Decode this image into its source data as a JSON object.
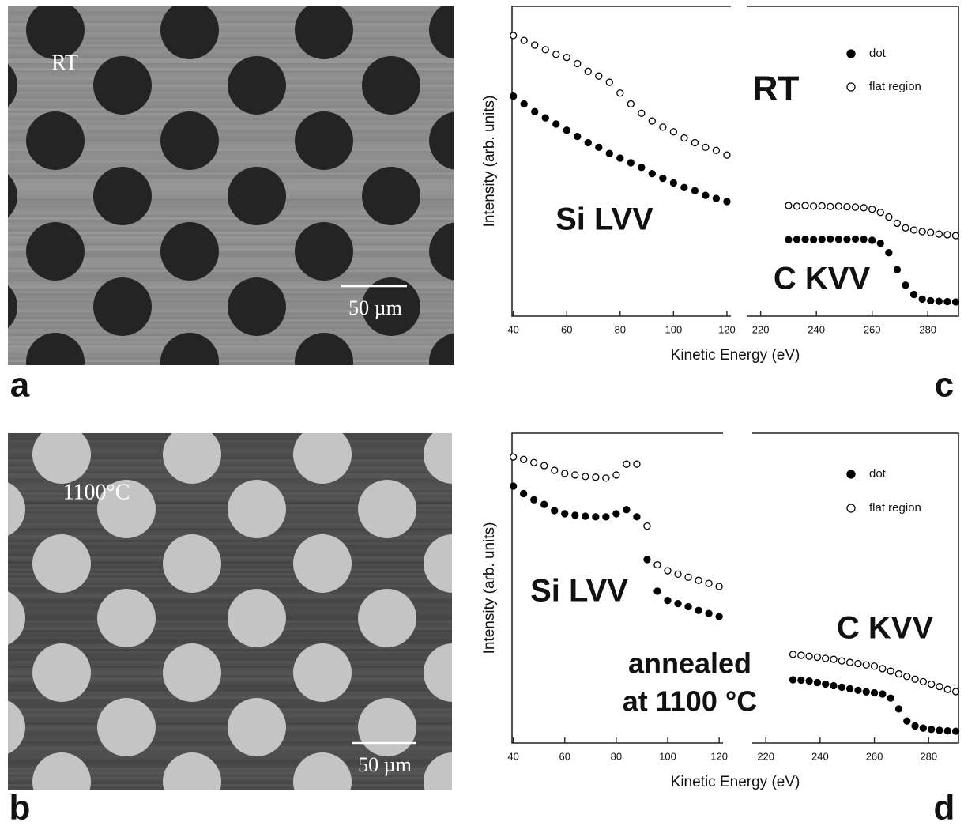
{
  "images": [
    {
      "panel": "a",
      "label": "RT",
      "scale_bar": "50 µm"
    },
    {
      "panel": "b",
      "label": "1100°C",
      "scale_bar": "50 µm"
    }
  ],
  "chart_data": [
    {
      "type": "scatter",
      "panel": "c",
      "x_label": "Kinetic Energy (eV)",
      "y_label": "Intensity (arb. units)",
      "annotations": [
        "Si LVV",
        "C KVV",
        "RT"
      ],
      "xlim": [
        39.5,
        121.5
      ],
      "xticks": [
        40,
        60,
        80,
        100,
        120
      ],
      "x2lim": [
        215,
        291
      ],
      "x2ticks": [
        220,
        240,
        260,
        280
      ],
      "ylim": [
        0,
        100
      ],
      "x": [
        40,
        44,
        48,
        52,
        56,
        60,
        64,
        68,
        72,
        76,
        80,
        84,
        88,
        92,
        96,
        100,
        104,
        108,
        112,
        116,
        120,
        230,
        233,
        236,
        239,
        242,
        245,
        248,
        251,
        254,
        257,
        260,
        263,
        266,
        269,
        272,
        275,
        278,
        281,
        284,
        287,
        290
      ],
      "series": [
        {
          "name": "dot",
          "color": "#000000",
          "filled": true,
          "values": [
            71,
            68.5,
            66,
            64,
            62,
            60,
            58,
            56,
            54.5,
            52.5,
            51,
            49.5,
            48,
            46,
            44.5,
            43,
            41.5,
            40.5,
            39,
            38,
            37,
            24.7,
            24.8,
            24.8,
            24.7,
            24.8,
            24.9,
            24.8,
            24.8,
            24.9,
            24.8,
            24.5,
            23.5,
            20.5,
            15,
            10,
            7,
            5.5,
            5,
            4.8,
            4.7,
            4.6
          ]
        },
        {
          "name": "flat region",
          "color": "#000000",
          "filled": false,
          "values": [
            90.6,
            89,
            87.5,
            86,
            84.5,
            83.5,
            81.5,
            79,
            77.5,
            75.5,
            72,
            68.5,
            65.5,
            63,
            61,
            59.5,
            57.5,
            56,
            54.5,
            53.5,
            52,
            35.7,
            35.5,
            35.7,
            35.5,
            35.6,
            35.4,
            35.5,
            35.3,
            35.2,
            35,
            34.5,
            33.5,
            32,
            30,
            28.5,
            27.8,
            27.3,
            27,
            26.5,
            26.3,
            26
          ]
        }
      ]
    },
    {
      "type": "scatter",
      "panel": "d",
      "x_label": "Kinetic Energy (eV)",
      "y_label": "Intensity (arb. units)",
      "annotations": [
        "Si LVV",
        "C KVV",
        "annealed",
        "at 1100 °C"
      ],
      "xlim": [
        39.5,
        121.5
      ],
      "xticks": [
        40,
        60,
        80,
        100,
        120
      ],
      "x2lim": [
        215,
        291
      ],
      "x2ticks": [
        220,
        240,
        260,
        280
      ],
      "ylim": [
        0,
        100
      ],
      "x": [
        40,
        44,
        48,
        52,
        56,
        60,
        64,
        68,
        72,
        76,
        80,
        84,
        88,
        92,
        96,
        100,
        104,
        108,
        112,
        116,
        120,
        230,
        233,
        236,
        239,
        242,
        245,
        248,
        251,
        254,
        257,
        260,
        263,
        266,
        269,
        272,
        275,
        278,
        281,
        284,
        287,
        290
      ],
      "series": [
        {
          "name": "dot",
          "color": "#000000",
          "filled": true,
          "values": [
            82.9,
            80.5,
            78.5,
            77,
            75,
            74,
            73.5,
            73.2,
            73,
            73,
            74,
            75.3,
            73,
            59.2,
            49,
            46,
            45,
            44,
            42.8,
            41.8,
            40.8,
            20.4,
            20.3,
            20,
            19.5,
            19,
            18.5,
            18,
            17.5,
            17,
            16.5,
            16.2,
            15.8,
            14.5,
            11,
            7.1,
            5.5,
            4.8,
            4.4,
            4.1,
            3.9,
            3.8
          ]
        },
        {
          "name": "flat region",
          "color": "#000000",
          "filled": false,
          "values": [
            92.3,
            91.5,
            90.5,
            89.5,
            88,
            87,
            86.5,
            86,
            85.8,
            85.5,
            86.5,
            90,
            90,
            70,
            57.5,
            55.6,
            54.5,
            53.5,
            52.5,
            51.5,
            50.5,
            28.6,
            28.3,
            28,
            27.7,
            27.3,
            27,
            26.5,
            26,
            25.6,
            25.2,
            24.8,
            24,
            23.2,
            22.3,
            21.5,
            20.6,
            19.8,
            19,
            18.2,
            17.3,
            16.6
          ]
        }
      ]
    }
  ]
}
